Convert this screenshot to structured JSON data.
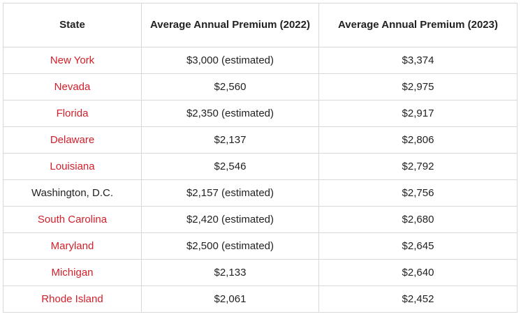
{
  "table": {
    "headers": [
      "State",
      "Average Annual Premium (2022)",
      "Average Annual Premium (2023)"
    ],
    "rows": [
      {
        "state": "New York",
        "p2022": "$3,000 (estimated)",
        "p2023": "$3,374",
        "linked": true
      },
      {
        "state": "Nevada",
        "p2022": "$2,560",
        "p2023": "$2,975",
        "linked": true
      },
      {
        "state": "Florida",
        "p2022": "$2,350 (estimated)",
        "p2023": "$2,917",
        "linked": true
      },
      {
        "state": "Delaware",
        "p2022": "$2,137",
        "p2023": "$2,806",
        "linked": true
      },
      {
        "state": "Louisiana",
        "p2022": "$2,546",
        "p2023": "$2,792",
        "linked": true
      },
      {
        "state": "Washington, D.C.",
        "p2022": "$2,157 (estimated)",
        "p2023": "$2,756",
        "linked": false
      },
      {
        "state": "South Carolina",
        "p2022": "$2,420 (estimated)",
        "p2023": "$2,680",
        "linked": true
      },
      {
        "state": "Maryland",
        "p2022": "$2,500 (estimated)",
        "p2023": "$2,645",
        "linked": true
      },
      {
        "state": "Michigan",
        "p2022": "$2,133",
        "p2023": "$2,640",
        "linked": true
      },
      {
        "state": "Rhode Island",
        "p2022": "$2,061",
        "p2023": "$2,452",
        "linked": true
      }
    ]
  },
  "colors": {
    "link": "#d21f2a",
    "text": "#222222",
    "border": "#d9d9d9"
  }
}
